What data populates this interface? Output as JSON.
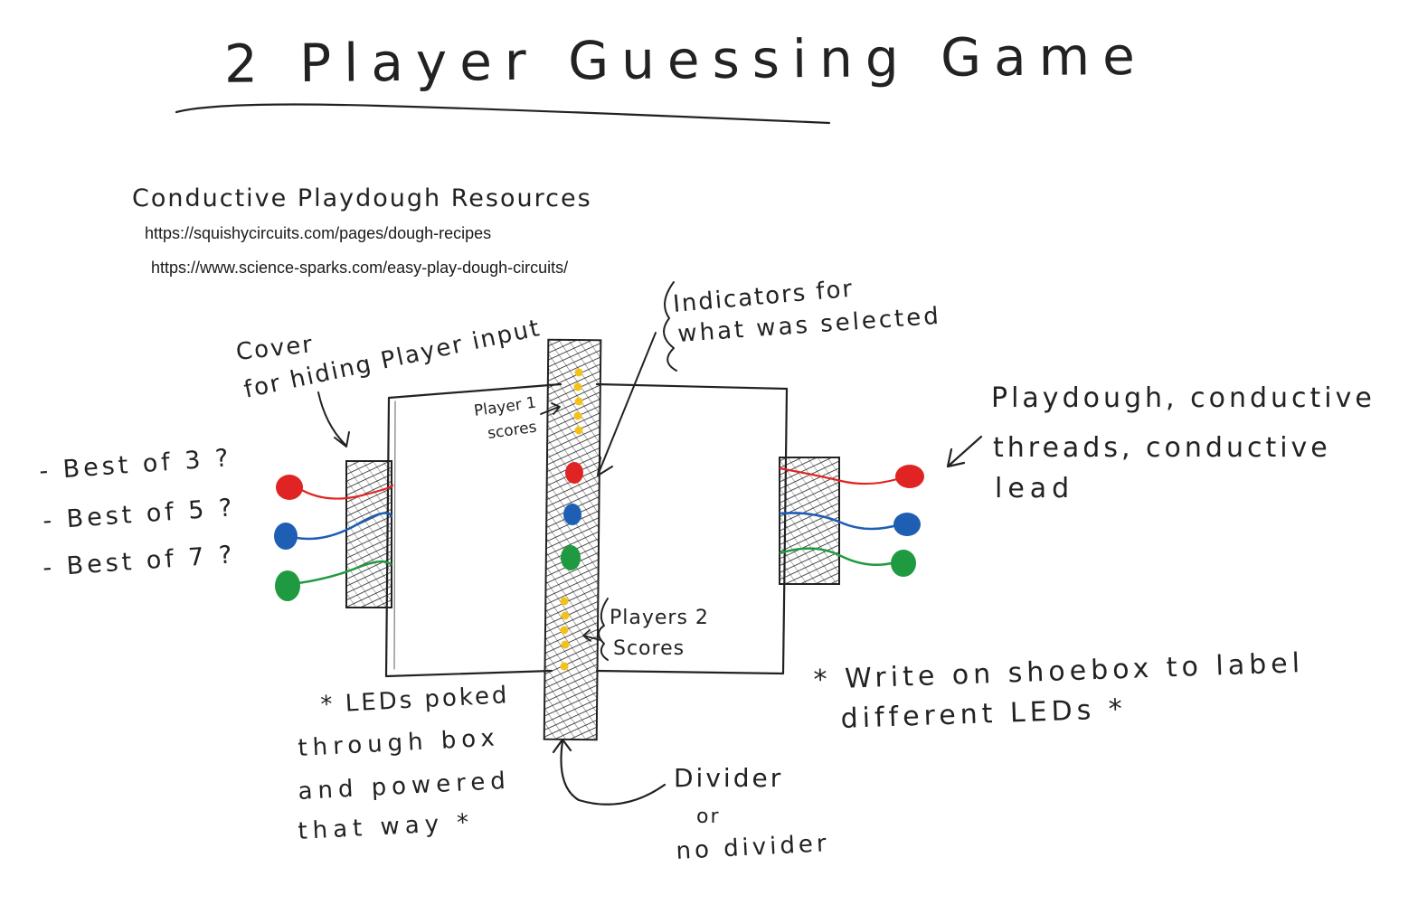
{
  "title": "2 Player Guessing Game",
  "resources": {
    "heading": "Conductive Playdough Resources",
    "links": [
      "https://squishycircuits.com/pages/dough-recipes",
      "https://www.science-sparks.com/easy-play-dough-circuits/"
    ]
  },
  "labels": {
    "cover": [
      "Cover",
      "for hiding Player input"
    ],
    "indicators": [
      "Indicators for",
      "what was selected"
    ],
    "player1_scores": [
      "Player 1",
      "scores"
    ],
    "player2_scores": [
      "Players 2",
      "Scores"
    ],
    "playdough": [
      "Playdough, conductive",
      "threads, conductive",
      "lead"
    ],
    "best_of": [
      "- Best of 3 ?",
      "- Best of 5 ?",
      "- Best of 7 ?"
    ],
    "leds_note": [
      "* LEDs poked",
      "through box",
      "and powered",
      "that way *"
    ],
    "shoebox_note": [
      "* Write on shoebox to label",
      "different LEDs *"
    ],
    "divider": [
      "Divider",
      "or",
      "no divider"
    ]
  },
  "colors": {
    "red": "#e02424",
    "blue": "#1e5fb4",
    "green": "#1f9a40",
    "yellow": "#f2c21b",
    "ink": "#222222"
  }
}
